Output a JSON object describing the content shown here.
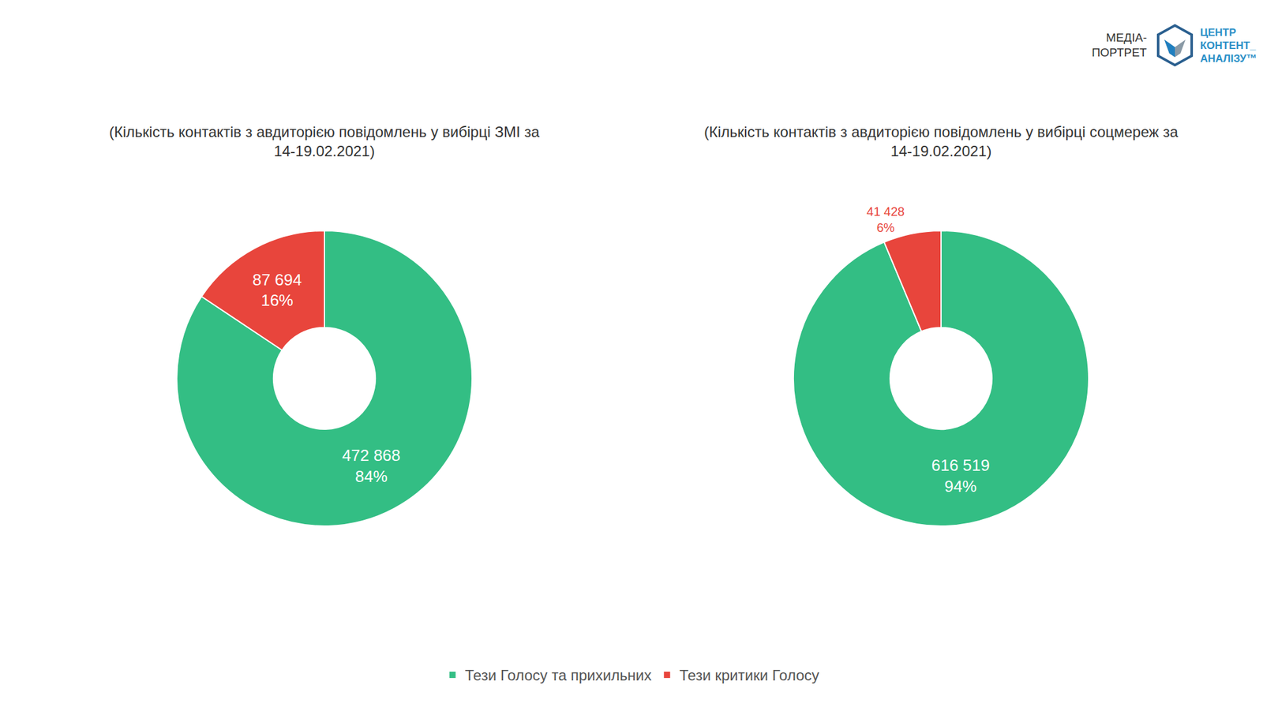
{
  "header": {
    "logo": [
      "МЕДІА-",
      "ПОРТРЕТ"
    ],
    "brand": [
      "ЦЕНТР",
      "КОНТЕНТ_",
      "АНАЛІЗУ™"
    ]
  },
  "chart_data": [
    {
      "type": "pie",
      "title": "(Кількість контактів з авдиторією повідомлень у вибірці ЗМІ за 14-19.02.2021)",
      "categories": [
        "Тези Голосу та прихильних",
        "Тези критики Голосу"
      ],
      "values": [
        472868,
        87694
      ],
      "value_labels": [
        "472 868",
        "87 694"
      ],
      "percents": [
        84,
        16
      ],
      "percent_labels": [
        "84%",
        "16%"
      ],
      "colors": [
        "#33be84",
        "#e8453c"
      ],
      "data_labels": true,
      "legend": "bottom"
    },
    {
      "type": "pie",
      "title": "(Кількість контактів з авдиторією повідомлень у вибірці соцмереж за 14-19.02.2021)",
      "categories": [
        "Тези Голосу та прихильних",
        "Тези критики Голосу"
      ],
      "values": [
        616519,
        41428
      ],
      "value_labels": [
        "616 519",
        "41 428"
      ],
      "percents": [
        94,
        6
      ],
      "percent_labels": [
        "94%",
        "6%"
      ],
      "colors": [
        "#33be84",
        "#e8453c"
      ],
      "data_labels": true,
      "legend": "bottom"
    }
  ]
}
